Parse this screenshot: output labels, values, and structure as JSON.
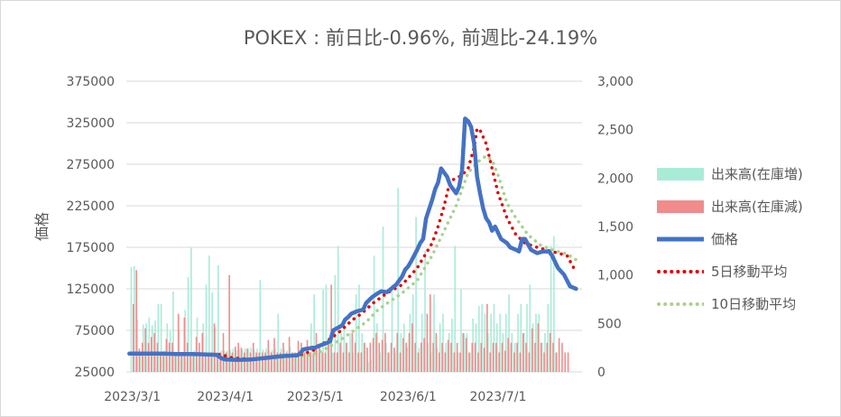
{
  "chart_data": {
    "type": "bar+line",
    "title": "POKEX : 前日比-0.96%, 前週比-24.19%",
    "ylabel": "価格",
    "y_left": {
      "lim": [
        25000,
        375000
      ],
      "ticks": [
        "375000",
        "325000",
        "275000",
        "225000",
        "175000",
        "125000",
        "75000",
        "25000"
      ],
      "tick_values": [
        375000,
        325000,
        275000,
        225000,
        175000,
        125000,
        75000,
        25000
      ]
    },
    "y_right": {
      "lim": [
        0,
        3000
      ],
      "ticks": [
        "3,000",
        "2,500",
        "2,000",
        "1,500",
        "1,000",
        "500",
        "0"
      ],
      "tick_values": [
        3000,
        2500,
        2000,
        1500,
        1000,
        500,
        0
      ]
    },
    "x_ticks": [
      "2023/3/1",
      "2023/4/1",
      "2023/5/1",
      "2023/6/1",
      "2023/7/1"
    ],
    "x_tick_days": [
      0,
      31,
      61,
      92,
      122
    ],
    "x_range_days": [
      -2,
      150
    ],
    "grid": "horizontal",
    "legend_placement": "right",
    "series": [
      {
        "name": "出来高(在庫増)",
        "kind": "bar",
        "axis": "right",
        "color": "#a8ecd8",
        "values": [
          1080,
          1090,
          540,
          180,
          490,
          500,
          560,
          480,
          530,
          700,
          700,
          220,
          500,
          420,
          830,
          180,
          430,
          180,
          640,
          980,
          1280,
          220,
          560,
          200,
          500,
          900,
          1200,
          820,
          460,
          1100,
          220,
          220,
          220,
          230,
          240,
          220,
          230,
          230,
          240,
          240,
          250,
          230,
          240,
          950,
          230,
          240,
          220,
          230,
          240,
          600,
          240,
          230,
          220,
          260,
          200,
          200,
          230,
          240,
          260,
          200,
          500,
          800,
          220,
          240,
          850,
          900,
          350,
          200,
          1000,
          1300,
          400,
          500,
          300,
          400,
          200,
          800,
          900,
          400,
          300,
          100,
          120,
          1200,
          500,
          200,
          1500,
          300,
          200,
          900,
          200,
          1900,
          400,
          500,
          250,
          600,
          800,
          1600,
          250,
          600,
          1250,
          300,
          200,
          800,
          250,
          500,
          600,
          300,
          400,
          550,
          1300,
          200,
          850,
          400,
          400,
          200,
          550,
          500,
          680,
          700,
          600,
          400,
          600,
          700,
          500,
          600,
          400,
          600,
          800,
          400,
          300,
          600,
          700,
          400,
          700,
          900,
          500,
          600,
          600,
          300,
          400,
          700,
          1300,
          1400,
          200
        ]
      },
      {
        "name": "出来高(在庫減)",
        "kind": "bar",
        "axis": "right",
        "color": "#f28b8b",
        "values": [
          700,
          1050,
          240,
          300,
          450,
          300,
          360,
          400,
          300,
          200,
          200,
          340,
          300,
          300,
          200,
          600,
          200,
          560,
          300,
          200,
          200,
          360,
          300,
          400,
          200,
          200,
          200,
          500,
          200,
          200,
          400,
          200,
          1000,
          200,
          260,
          300,
          250,
          200,
          240,
          200,
          300,
          200,
          200,
          200,
          200,
          330,
          200,
          350,
          200,
          200,
          300,
          200,
          360,
          200,
          200,
          320,
          300,
          200,
          330,
          200,
          200,
          400,
          290,
          200,
          200,
          300,
          900,
          200,
          200,
          300,
          200,
          300,
          200,
          400,
          300,
          200,
          200,
          300,
          250,
          300,
          350,
          400,
          300,
          330,
          400,
          200,
          300,
          250,
          400,
          200,
          350,
          300,
          400,
          500,
          300,
          200,
          300,
          350,
          600,
          800,
          300,
          400,
          200,
          300,
          200,
          330,
          300,
          200,
          300,
          200,
          400,
          350,
          200,
          300,
          300,
          200,
          300,
          250,
          700,
          200,
          300,
          300,
          200,
          300,
          220,
          350,
          300,
          200,
          300,
          200,
          400,
          300,
          200,
          450,
          300,
          500,
          300,
          200,
          300,
          400,
          300,
          200,
          350,
          300,
          200,
          200
        ]
      },
      {
        "name": "価格",
        "kind": "line",
        "axis": "left",
        "color": "#4472c4",
        "x": [
          -1,
          0,
          5,
          10,
          15,
          20,
          25,
          28,
          30,
          31,
          35,
          40,
          45,
          50,
          55,
          56,
          57,
          60,
          61,
          62,
          65,
          66,
          67,
          70,
          71,
          72,
          73,
          75,
          77,
          78,
          80,
          82,
          83,
          85,
          88,
          90,
          91,
          92,
          93,
          95,
          96,
          97,
          98,
          100,
          101,
          102,
          103,
          105,
          106,
          107,
          108,
          109,
          110,
          111,
          112,
          113,
          114,
          115,
          116,
          117,
          118,
          119,
          120,
          121,
          123,
          125,
          126,
          128,
          129,
          130,
          131,
          133,
          135,
          137,
          139,
          140,
          142,
          144,
          146,
          148
        ],
        "y": [
          47000,
          47000,
          47000,
          47000,
          46500,
          46500,
          46000,
          45500,
          41000,
          40000,
          39500,
          40000,
          42000,
          44000,
          45000,
          47000,
          52000,
          54000,
          54000,
          56000,
          60000,
          62000,
          75000,
          81000,
          88000,
          91000,
          95000,
          98000,
          100000,
          108000,
          115000,
          120000,
          122000,
          121000,
          130000,
          140000,
          148000,
          152000,
          158000,
          172000,
          180000,
          185000,
          210000,
          232000,
          245000,
          253000,
          270000,
          260000,
          250000,
          245000,
          240000,
          248000,
          268000,
          330000,
          327000,
          320000,
          300000,
          260000,
          240000,
          222000,
          210000,
          205000,
          195000,
          200000,
          185000,
          180000,
          175000,
          172000,
          170000,
          185000,
          185000,
          172000,
          168000,
          170000,
          170000,
          165000,
          150000,
          142000,
          128000,
          125000
        ]
      },
      {
        "name": "5日移動平均",
        "kind": "line",
        "axis": "left",
        "color": "#e00000",
        "dash": "dot",
        "x": [
          -1,
          25,
          30,
          33,
          40,
          50,
          56,
          60,
          62,
          64,
          66,
          68,
          70,
          72,
          74,
          76,
          78,
          80,
          85,
          90,
          95,
          100,
          102,
          104,
          106,
          108,
          110,
          112,
          114,
          115,
          116,
          118,
          120,
          122,
          125,
          128,
          131,
          135,
          140,
          145,
          148
        ],
        "y": [
          47000,
          46500,
          45500,
          42000,
          40000,
          43500,
          45500,
          50000,
          55000,
          60000,
          65000,
          70000,
          76000,
          83000,
          89000,
          94000,
          100000,
          107000,
          120000,
          130000,
          150000,
          180000,
          200000,
          225000,
          255000,
          258000,
          262000,
          270000,
          295000,
          318000,
          316000,
          300000,
          270000,
          240000,
          210000,
          190000,
          180000,
          175000,
          170000,
          165000,
          145000
        ]
      },
      {
        "name": "10日移動平均",
        "kind": "line",
        "axis": "left",
        "color": "#a9d18e",
        "dash": "dot",
        "x": [
          -1,
          30,
          35,
          40,
          50,
          58,
          62,
          66,
          70,
          74,
          78,
          82,
          86,
          90,
          95,
          100,
          104,
          108,
          112,
          116,
          118,
          120,
          122,
          125,
          128,
          132,
          136,
          140,
          145,
          148
        ],
        "y": [
          47000,
          46000,
          42000,
          40500,
          42000,
          44500,
          48000,
          56000,
          65000,
          75000,
          85000,
          100000,
          110000,
          120000,
          135000,
          165000,
          195000,
          225000,
          265000,
          280000,
          285000,
          280000,
          262000,
          228000,
          210000,
          190000,
          178000,
          172000,
          167000,
          160000
        ]
      }
    ]
  }
}
